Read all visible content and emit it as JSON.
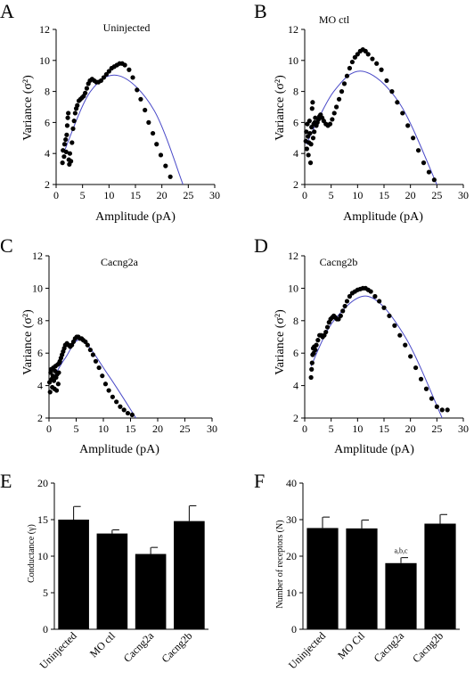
{
  "chart_data": [
    {
      "panel": "A",
      "type": "scatter",
      "title": "Uninjected",
      "xlabel": "Amplitude (pA)",
      "ylabel": "Variance (σ²)",
      "xlim": [
        0,
        30
      ],
      "ylim": [
        2,
        12
      ],
      "xticks": [
        0,
        5,
        10,
        15,
        20,
        25,
        30
      ],
      "yticks": [
        2,
        4,
        6,
        8,
        10,
        12
      ],
      "points": [
        [
          1.2,
          3.4
        ],
        [
          1.3,
          4.2
        ],
        [
          1.5,
          3.8
        ],
        [
          1.6,
          4.6
        ],
        [
          1.8,
          4.9
        ],
        [
          1.9,
          4.1
        ],
        [
          2.0,
          5.2
        ],
        [
          2.1,
          5.8
        ],
        [
          2.2,
          6.3
        ],
        [
          2.3,
          6.6
        ],
        [
          2.4,
          3.6
        ],
        [
          2.5,
          3.3
        ],
        [
          2.6,
          4.0
        ],
        [
          2.8,
          3.5
        ],
        [
          3.0,
          4.7
        ],
        [
          3.2,
          5.6
        ],
        [
          3.4,
          6.1
        ],
        [
          3.6,
          6.6
        ],
        [
          3.8,
          6.9
        ],
        [
          4.0,
          7.1
        ],
        [
          4.3,
          7.4
        ],
        [
          4.6,
          7.5
        ],
        [
          4.9,
          7.6
        ],
        [
          5.2,
          7.7
        ],
        [
          5.5,
          7.9
        ],
        [
          5.8,
          8.2
        ],
        [
          6.1,
          8.5
        ],
        [
          6.4,
          8.7
        ],
        [
          6.8,
          8.8
        ],
        [
          7.2,
          8.7
        ],
        [
          7.6,
          8.6
        ],
        [
          8.0,
          8.6
        ],
        [
          8.5,
          8.7
        ],
        [
          9.0,
          8.9
        ],
        [
          9.5,
          9.1
        ],
        [
          10.0,
          9.3
        ],
        [
          10.5,
          9.5
        ],
        [
          11.0,
          9.6
        ],
        [
          11.5,
          9.7
        ],
        [
          12.0,
          9.8
        ],
        [
          12.5,
          9.8
        ],
        [
          13.0,
          9.7
        ],
        [
          13.8,
          9.4
        ],
        [
          14.5,
          8.9
        ],
        [
          15.3,
          8.1
        ],
        [
          16.0,
          7.5
        ],
        [
          16.8,
          6.8
        ],
        [
          17.5,
          6.0
        ],
        [
          18.3,
          5.3
        ],
        [
          19.0,
          4.6
        ],
        [
          19.8,
          3.9
        ],
        [
          20.7,
          3.2
        ],
        [
          21.6,
          2.5
        ]
      ],
      "fit": {
        "type": "parabola",
        "points": [
          [
            1.5,
            4.1
          ],
          [
            6.5,
            8.0
          ],
          [
            12.0,
            9.0
          ],
          [
            18.5,
            6.8
          ],
          [
            24.0,
            2.0
          ]
        ]
      }
    },
    {
      "panel": "B",
      "type": "scatter",
      "title": "MO ctl",
      "xlabel": "Amplitude (pA)",
      "ylabel": "Variance (σ²)",
      "xlim": [
        0,
        30
      ],
      "ylim": [
        2,
        12
      ],
      "xticks": [
        0,
        5,
        10,
        15,
        20,
        25,
        30
      ],
      "yticks": [
        2,
        4,
        6,
        8,
        10,
        12
      ],
      "points": [
        [
          0.2,
          4.8
        ],
        [
          0.3,
          5.4
        ],
        [
          0.4,
          4.3
        ],
        [
          0.5,
          5.9
        ],
        [
          0.6,
          5.1
        ],
        [
          0.7,
          3.9
        ],
        [
          0.8,
          4.7
        ],
        [
          0.9,
          6.1
        ],
        [
          1.0,
          5.3
        ],
        [
          1.1,
          3.4
        ],
        [
          1.2,
          4.6
        ],
        [
          1.3,
          5.7
        ],
        [
          1.4,
          6.9
        ],
        [
          1.5,
          7.3
        ],
        [
          1.6,
          5.0
        ],
        [
          1.7,
          5.9
        ],
        [
          1.8,
          5.4
        ],
        [
          1.9,
          6.0
        ],
        [
          2.0,
          6.3
        ],
        [
          2.2,
          5.8
        ],
        [
          2.4,
          6.0
        ],
        [
          2.6,
          6.2
        ],
        [
          2.8,
          6.4
        ],
        [
          3.0,
          6.5
        ],
        [
          3.3,
          6.3
        ],
        [
          3.6,
          6.1
        ],
        [
          4.0,
          5.9
        ],
        [
          4.4,
          5.8
        ],
        [
          4.8,
          5.9
        ],
        [
          5.2,
          6.2
        ],
        [
          5.6,
          6.6
        ],
        [
          6.0,
          7.0
        ],
        [
          6.5,
          7.5
        ],
        [
          7.0,
          8.0
        ],
        [
          7.5,
          8.5
        ],
        [
          8.0,
          9.0
        ],
        [
          8.5,
          9.5
        ],
        [
          9.0,
          9.9
        ],
        [
          9.5,
          10.2
        ],
        [
          10.0,
          10.4
        ],
        [
          10.5,
          10.6
        ],
        [
          11.0,
          10.7
        ],
        [
          11.5,
          10.6
        ],
        [
          12.0,
          10.4
        ],
        [
          12.8,
          10.1
        ],
        [
          13.6,
          9.8
        ],
        [
          14.5,
          9.4
        ],
        [
          15.5,
          8.7
        ],
        [
          16.5,
          8.0
        ],
        [
          17.5,
          7.3
        ],
        [
          18.5,
          6.6
        ],
        [
          19.5,
          5.8
        ],
        [
          20.5,
          5.0
        ],
        [
          21.5,
          4.2
        ],
        [
          22.5,
          3.4
        ],
        [
          23.5,
          2.8
        ],
        [
          24.5,
          2.3
        ]
      ],
      "fit": {
        "type": "parabola",
        "points": [
          [
            0.3,
            4.6
          ],
          [
            5.5,
            8.0
          ],
          [
            11.0,
            9.3
          ],
          [
            18.0,
            7.2
          ],
          [
            25.0,
            2.0
          ]
        ]
      }
    },
    {
      "panel": "C",
      "type": "scatter",
      "title": "Cacng2a",
      "xlabel": "Amplitude (pA)",
      "ylabel": "Variance (σ²)",
      "xlim": [
        0,
        30
      ],
      "ylim": [
        2,
        12
      ],
      "xticks": [
        0,
        5,
        10,
        15,
        20,
        25,
        30
      ],
      "yticks": [
        2,
        4,
        6,
        8,
        10,
        12
      ],
      "points": [
        [
          0.1,
          4.2
        ],
        [
          0.2,
          3.6
        ],
        [
          0.3,
          4.8
        ],
        [
          0.4,
          5.0
        ],
        [
          0.5,
          4.4
        ],
        [
          0.6,
          3.9
        ],
        [
          0.7,
          4.6
        ],
        [
          0.8,
          5.1
        ],
        [
          0.9,
          4.3
        ],
        [
          1.0,
          3.8
        ],
        [
          1.1,
          4.9
        ],
        [
          1.2,
          5.2
        ],
        [
          1.3,
          4.5
        ],
        [
          1.4,
          3.7
        ],
        [
          1.5,
          4.7
        ],
        [
          1.6,
          5.3
        ],
        [
          1.7,
          4.1
        ],
        [
          1.8,
          4.8
        ],
        [
          1.9,
          5.4
        ],
        [
          2.0,
          5.5
        ],
        [
          2.2,
          5.7
        ],
        [
          2.4,
          5.9
        ],
        [
          2.6,
          6.1
        ],
        [
          2.8,
          6.3
        ],
        [
          3.0,
          6.5
        ],
        [
          3.3,
          6.6
        ],
        [
          3.6,
          6.5
        ],
        [
          3.9,
          6.4
        ],
        [
          4.2,
          6.5
        ],
        [
          4.5,
          6.7
        ],
        [
          4.8,
          6.9
        ],
        [
          5.1,
          7.0
        ],
        [
          5.4,
          7.0
        ],
        [
          5.7,
          6.9
        ],
        [
          6.0,
          6.9
        ],
        [
          6.3,
          6.8
        ],
        [
          6.7,
          6.7
        ],
        [
          7.1,
          6.5
        ],
        [
          7.6,
          6.2
        ],
        [
          8.1,
          5.9
        ],
        [
          8.6,
          5.5
        ],
        [
          9.2,
          5.1
        ],
        [
          9.8,
          4.6
        ],
        [
          10.4,
          4.1
        ],
        [
          11.0,
          3.7
        ],
        [
          11.7,
          3.3
        ],
        [
          12.4,
          3.0
        ],
        [
          13.1,
          2.7
        ],
        [
          13.8,
          2.5
        ],
        [
          14.5,
          2.3
        ],
        [
          15.3,
          2.2
        ]
      ],
      "fit": {
        "type": "parabola",
        "points": [
          [
            0.5,
            4.3
          ],
          [
            3.0,
            5.7
          ],
          [
            6.0,
            6.8
          ],
          [
            11.0,
            4.6
          ],
          [
            16.0,
            2.0
          ]
        ]
      }
    },
    {
      "panel": "D",
      "type": "scatter",
      "title": "Cacng2b",
      "xlabel": "Amplitude (pA)",
      "ylabel": "Variance (σ²)",
      "xlim": [
        0,
        30
      ],
      "ylim": [
        2,
        12
      ],
      "xticks": [
        0,
        5,
        10,
        15,
        20,
        25,
        30
      ],
      "yticks": [
        2,
        4,
        6,
        8,
        10,
        12
      ],
      "points": [
        [
          1.2,
          4.5
        ],
        [
          1.3,
          5.0
        ],
        [
          1.4,
          5.4
        ],
        [
          1.5,
          5.9
        ],
        [
          1.6,
          6.3
        ],
        [
          1.7,
          6.0
        ],
        [
          1.8,
          6.4
        ],
        [
          2.0,
          6.2
        ],
        [
          2.2,
          6.5
        ],
        [
          2.5,
          6.8
        ],
        [
          2.8,
          7.1
        ],
        [
          3.1,
          7.1
        ],
        [
          3.4,
          7.0
        ],
        [
          3.7,
          7.1
        ],
        [
          4.0,
          7.3
        ],
        [
          4.3,
          7.6
        ],
        [
          4.6,
          7.9
        ],
        [
          4.9,
          8.1
        ],
        [
          5.2,
          8.2
        ],
        [
          5.5,
          8.3
        ],
        [
          5.8,
          8.2
        ],
        [
          6.1,
          8.1
        ],
        [
          6.4,
          8.1
        ],
        [
          6.8,
          8.3
        ],
        [
          7.2,
          8.6
        ],
        [
          7.6,
          8.9
        ],
        [
          8.0,
          9.2
        ],
        [
          8.5,
          9.5
        ],
        [
          9.0,
          9.7
        ],
        [
          9.5,
          9.8
        ],
        [
          10.0,
          9.9
        ],
        [
          10.5,
          9.95
        ],
        [
          11.0,
          10.0
        ],
        [
          11.5,
          10.0
        ],
        [
          12.0,
          9.9
        ],
        [
          12.5,
          9.8
        ],
        [
          13.3,
          9.5
        ],
        [
          14.1,
          9.2
        ],
        [
          15.0,
          8.8
        ],
        [
          16.0,
          8.3
        ],
        [
          17.0,
          7.7
        ],
        [
          18.0,
          7.1
        ],
        [
          19.0,
          6.5
        ],
        [
          20.0,
          5.8
        ],
        [
          21.0,
          5.1
        ],
        [
          22.0,
          4.4
        ],
        [
          23.0,
          3.8
        ],
        [
          24.0,
          3.2
        ],
        [
          25.0,
          2.7
        ],
        [
          26.0,
          2.5
        ],
        [
          27.0,
          2.5
        ]
      ],
      "fit": {
        "type": "parabola",
        "points": [
          [
            1.2,
            5.2
          ],
          [
            5.5,
            8.0
          ],
          [
            12.0,
            9.5
          ],
          [
            19.0,
            7.0
          ],
          [
            26.0,
            2.0
          ]
        ]
      }
    },
    {
      "panel": "E",
      "type": "bar",
      "categories": [
        "Uninjected",
        "MO ctl",
        "Cacng2a",
        "Cacng2b"
      ],
      "values": [
        15.0,
        13.1,
        10.3,
        14.8
      ],
      "errors": [
        1.8,
        0.5,
        0.9,
        2.1
      ],
      "ylabel": "Conductance (γ)",
      "ylim": [
        0,
        20
      ],
      "yticks": [
        0,
        5,
        10,
        15,
        20
      ]
    },
    {
      "panel": "F",
      "type": "bar",
      "categories": [
        "Uninjected",
        "MO Ctl",
        "Cacng2a",
        "Cacng2b"
      ],
      "values": [
        27.7,
        27.6,
        18.1,
        28.9
      ],
      "errors": [
        3.0,
        2.3,
        1.5,
        2.5
      ],
      "annotations": [
        "",
        "",
        "a,b,c",
        ""
      ],
      "ylabel": "Number of receptors (N)",
      "ylim": [
        0,
        40
      ],
      "yticks": [
        0,
        10,
        20,
        30,
        40
      ]
    }
  ]
}
